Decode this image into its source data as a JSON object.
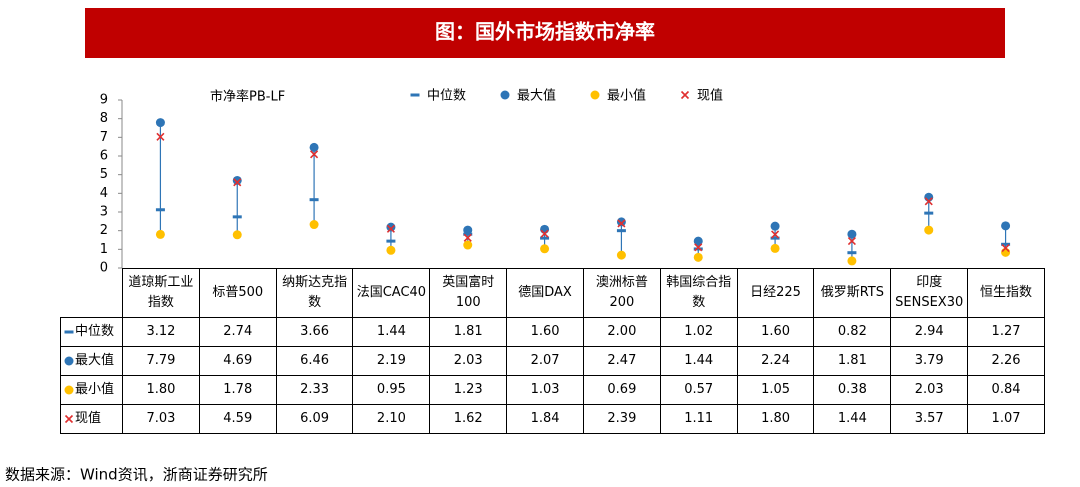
{
  "chart_data": {
    "type": "range-dot",
    "title": "图：国外市场指数市净率",
    "y_label": "市净率PB-LF",
    "source": "数据来源：Wind资讯，浙商证券研究所",
    "categories": [
      "道琼斯工业指数",
      "标普500",
      "纳斯达克指数",
      "法国CAC40",
      "英国富时100",
      "德国DAX",
      "澳洲标普200",
      "韩国综合指数",
      "日经225",
      "俄罗斯RTS",
      "印度SENSEX30",
      "恒生指数"
    ],
    "series": [
      {
        "name": "中位数",
        "color": "#2e75b6",
        "marker": "dash",
        "values": [
          3.12,
          2.74,
          3.66,
          1.44,
          1.81,
          1.6,
          2.0,
          1.02,
          1.6,
          0.82,
          2.94,
          1.27
        ],
        "value_labels": [
          "3.12",
          "2.74",
          "3.66",
          "1.44",
          "1.81",
          "1.60",
          "2.00",
          "1.02",
          "1.60",
          "0.82",
          "2.94",
          "1.27"
        ]
      },
      {
        "name": "最大值",
        "color": "#2e75b6",
        "marker": "circle",
        "values": [
          7.79,
          4.69,
          6.46,
          2.19,
          2.03,
          2.07,
          2.47,
          1.44,
          2.24,
          1.81,
          3.79,
          2.26
        ],
        "value_labels": [
          "7.79",
          "4.69",
          "6.46",
          "2.19",
          "2.03",
          "2.07",
          "2.47",
          "1.44",
          "2.24",
          "1.81",
          "3.79",
          "2.26"
        ]
      },
      {
        "name": "最小值",
        "color": "#ffc000",
        "marker": "circle",
        "values": [
          1.8,
          1.78,
          2.33,
          0.95,
          1.23,
          1.03,
          0.69,
          0.57,
          1.05,
          0.38,
          2.03,
          0.84
        ],
        "value_labels": [
          "1.80",
          "1.78",
          "2.33",
          "0.95",
          "1.23",
          "1.03",
          "0.69",
          "0.57",
          "1.05",
          "0.38",
          "2.03",
          "0.84"
        ]
      },
      {
        "name": "现值",
        "color": "#e03030",
        "marker": "cross",
        "values": [
          7.03,
          4.59,
          6.09,
          2.1,
          1.62,
          1.84,
          2.39,
          1.11,
          1.8,
          1.44,
          3.57,
          1.07
        ],
        "value_labels": [
          "7.03",
          "4.59",
          "6.09",
          "2.10",
          "1.62",
          "1.84",
          "2.39",
          "1.11",
          "1.80",
          "1.44",
          "3.57",
          "1.07"
        ]
      }
    ],
    "ylim": [
      0,
      9
    ],
    "yticks": [
      0,
      1,
      2,
      3,
      4,
      5,
      6,
      7,
      8,
      9
    ],
    "grid": false
  }
}
